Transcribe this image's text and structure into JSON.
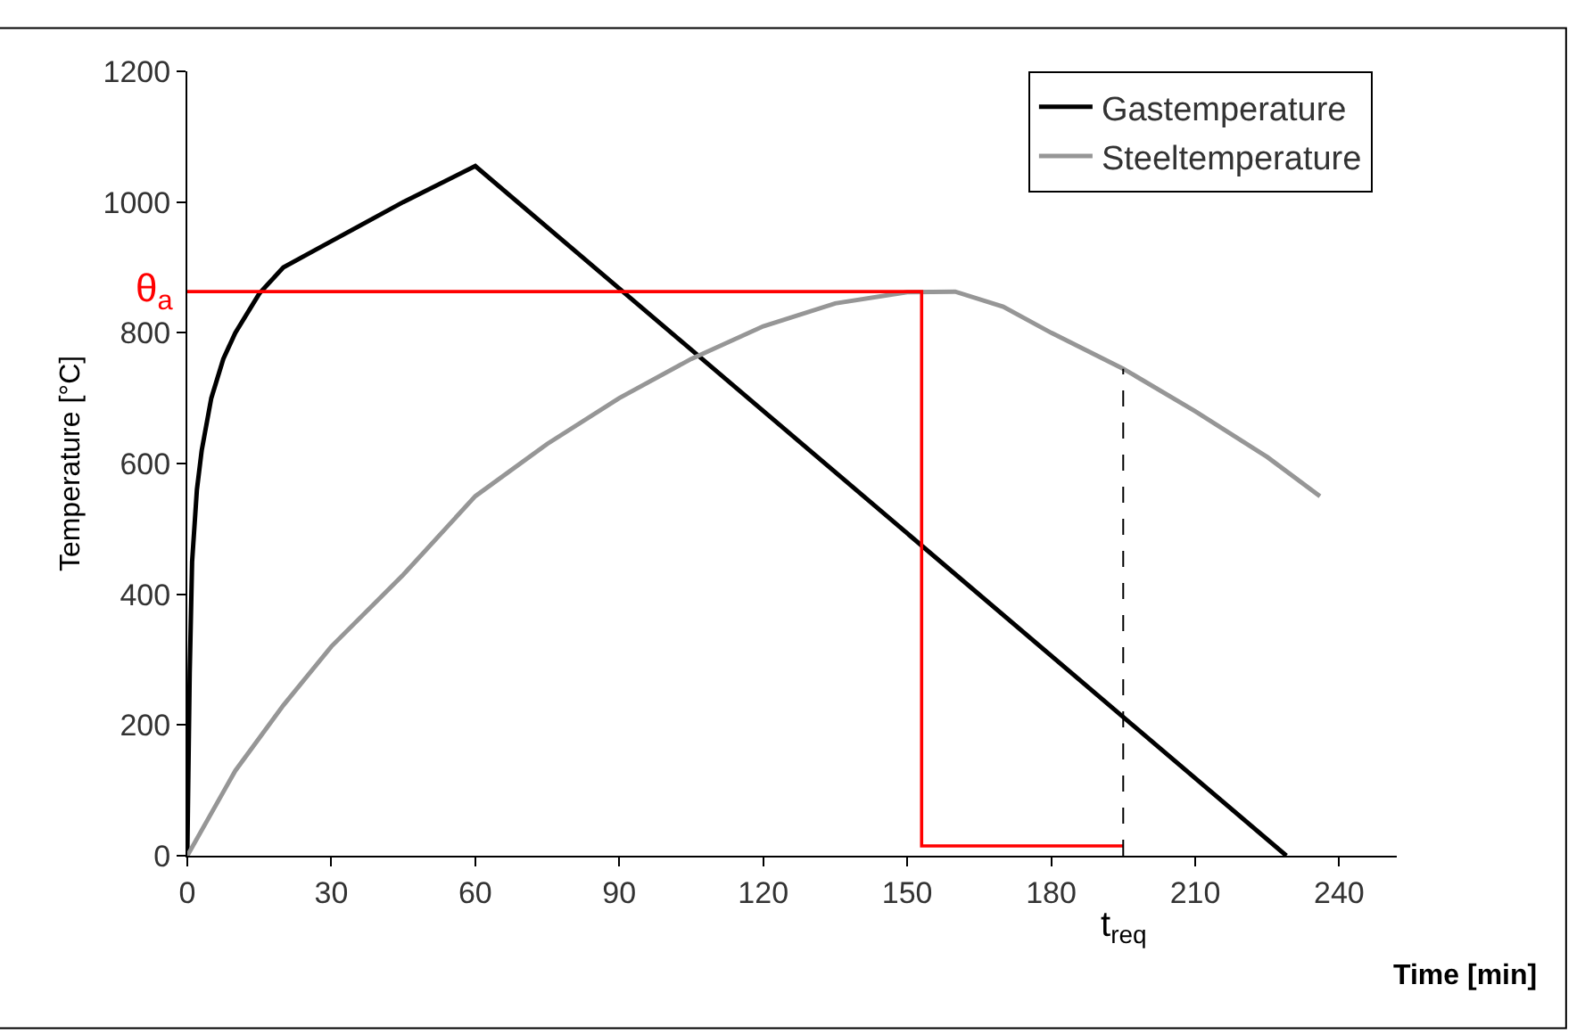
{
  "chart_data": {
    "type": "line",
    "xlabel": "Time [min]",
    "ylabel": "Temperature [°C]",
    "xlim": [
      0,
      252
    ],
    "xticks": [
      0,
      30,
      60,
      90,
      120,
      150,
      180,
      210,
      240
    ],
    "ylim": [
      0,
      1200
    ],
    "yticks": [
      0,
      200,
      400,
      600,
      800,
      1000,
      1200
    ],
    "legend": "top right",
    "marker": "none",
    "line_style": "solid",
    "series": [
      {
        "name": "Gastemperature",
        "color": "#000000",
        "x": [
          0,
          0.5,
          1,
          2,
          3,
          5,
          7.5,
          10,
          15,
          20,
          30,
          45,
          60,
          229
        ],
        "values": [
          0,
          280,
          450,
          560,
          620,
          700,
          760,
          800,
          860,
          900,
          940,
          1000,
          1055,
          0
        ]
      },
      {
        "name": "Steeltemperature",
        "color": "#969696",
        "x": [
          0,
          10,
          20,
          30,
          45,
          60,
          75,
          90,
          105,
          120,
          135,
          150,
          160,
          170,
          180,
          195,
          210,
          225,
          236
        ],
        "values": [
          0,
          130,
          230,
          320,
          430,
          550,
          630,
          700,
          760,
          810,
          845,
          862,
          863,
          840,
          800,
          745,
          680,
          610,
          550
        ]
      },
      {
        "color": "#ff0000",
        "x": [
          0,
          153,
          153,
          195
        ],
        "values": [
          863,
          863,
          15,
          15
        ]
      },
      {
        "color": "#000000",
        "line_style": "dashed",
        "x": [
          195,
          195
        ],
        "values": [
          0,
          745
        ]
      }
    ],
    "annotations": [
      {
        "text": "θ$_{a}$",
        "x": 0,
        "y": 863
      },
      {
        "text": "t$_{req}$",
        "x": 195,
        "y": 0
      }
    ]
  }
}
